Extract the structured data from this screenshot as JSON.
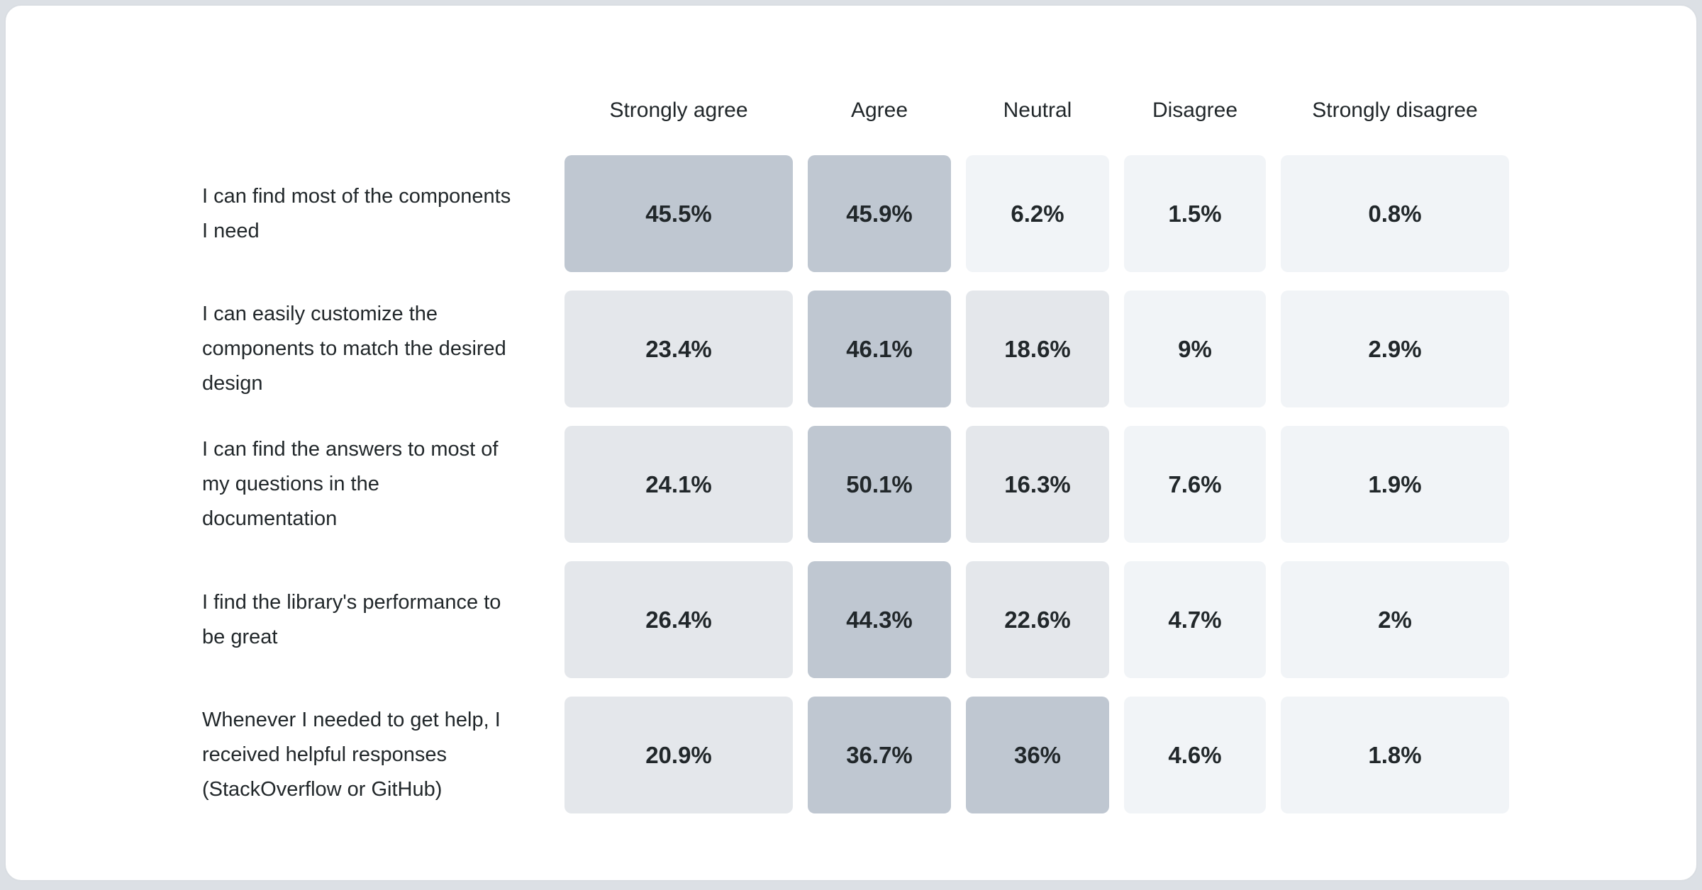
{
  "page": {
    "background": "#dce0e5",
    "card_background": "#ffffff",
    "card_border": "#d9dde2",
    "text_color": "#21272a"
  },
  "chart_data": {
    "type": "heatmap",
    "columns": [
      "Strongly agree",
      "Agree",
      "Neutral",
      "Disagree",
      "Strongly disagree"
    ],
    "rows": [
      {
        "label": "I can find most of the components I need",
        "values": [
          45.5,
          45.9,
          6.2,
          1.5,
          0.8
        ],
        "display": [
          "45.5%",
          "45.9%",
          "6.2%",
          "1.5%",
          "0.8%"
        ]
      },
      {
        "label": "I can easily customize the components to match the desired design",
        "values": [
          23.4,
          46.1,
          18.6,
          9,
          2.9
        ],
        "display": [
          "23.4%",
          "46.1%",
          "18.6%",
          "9%",
          "2.9%"
        ]
      },
      {
        "label": "I can find the answers to most of my questions in the documentation",
        "values": [
          24.1,
          50.1,
          16.3,
          7.6,
          1.9
        ],
        "display": [
          "24.1%",
          "50.1%",
          "16.3%",
          "7.6%",
          "1.9%"
        ]
      },
      {
        "label": "I find the library's performance to be great",
        "values": [
          26.4,
          44.3,
          22.6,
          4.7,
          2
        ],
        "display": [
          "26.4%",
          "44.3%",
          "22.6%",
          "4.7%",
          "2%"
        ]
      },
      {
        "label": "Whenever I needed to get help, I received helpful responses (StackOverflow or GitHub)",
        "values": [
          20.9,
          36.7,
          36,
          4.6,
          1.8
        ],
        "display": [
          "20.9%",
          "36.7%",
          "36%",
          "4.6%",
          "1.8%"
        ]
      }
    ],
    "value_unit": "%",
    "grid": false,
    "legend_position": "none",
    "color_scale": {
      "dark": "#bfc7d1",
      "mid": "#e4e7eb",
      "light": "#f1f4f7",
      "threshold_mid": 10,
      "threshold_dark": 30
    }
  }
}
